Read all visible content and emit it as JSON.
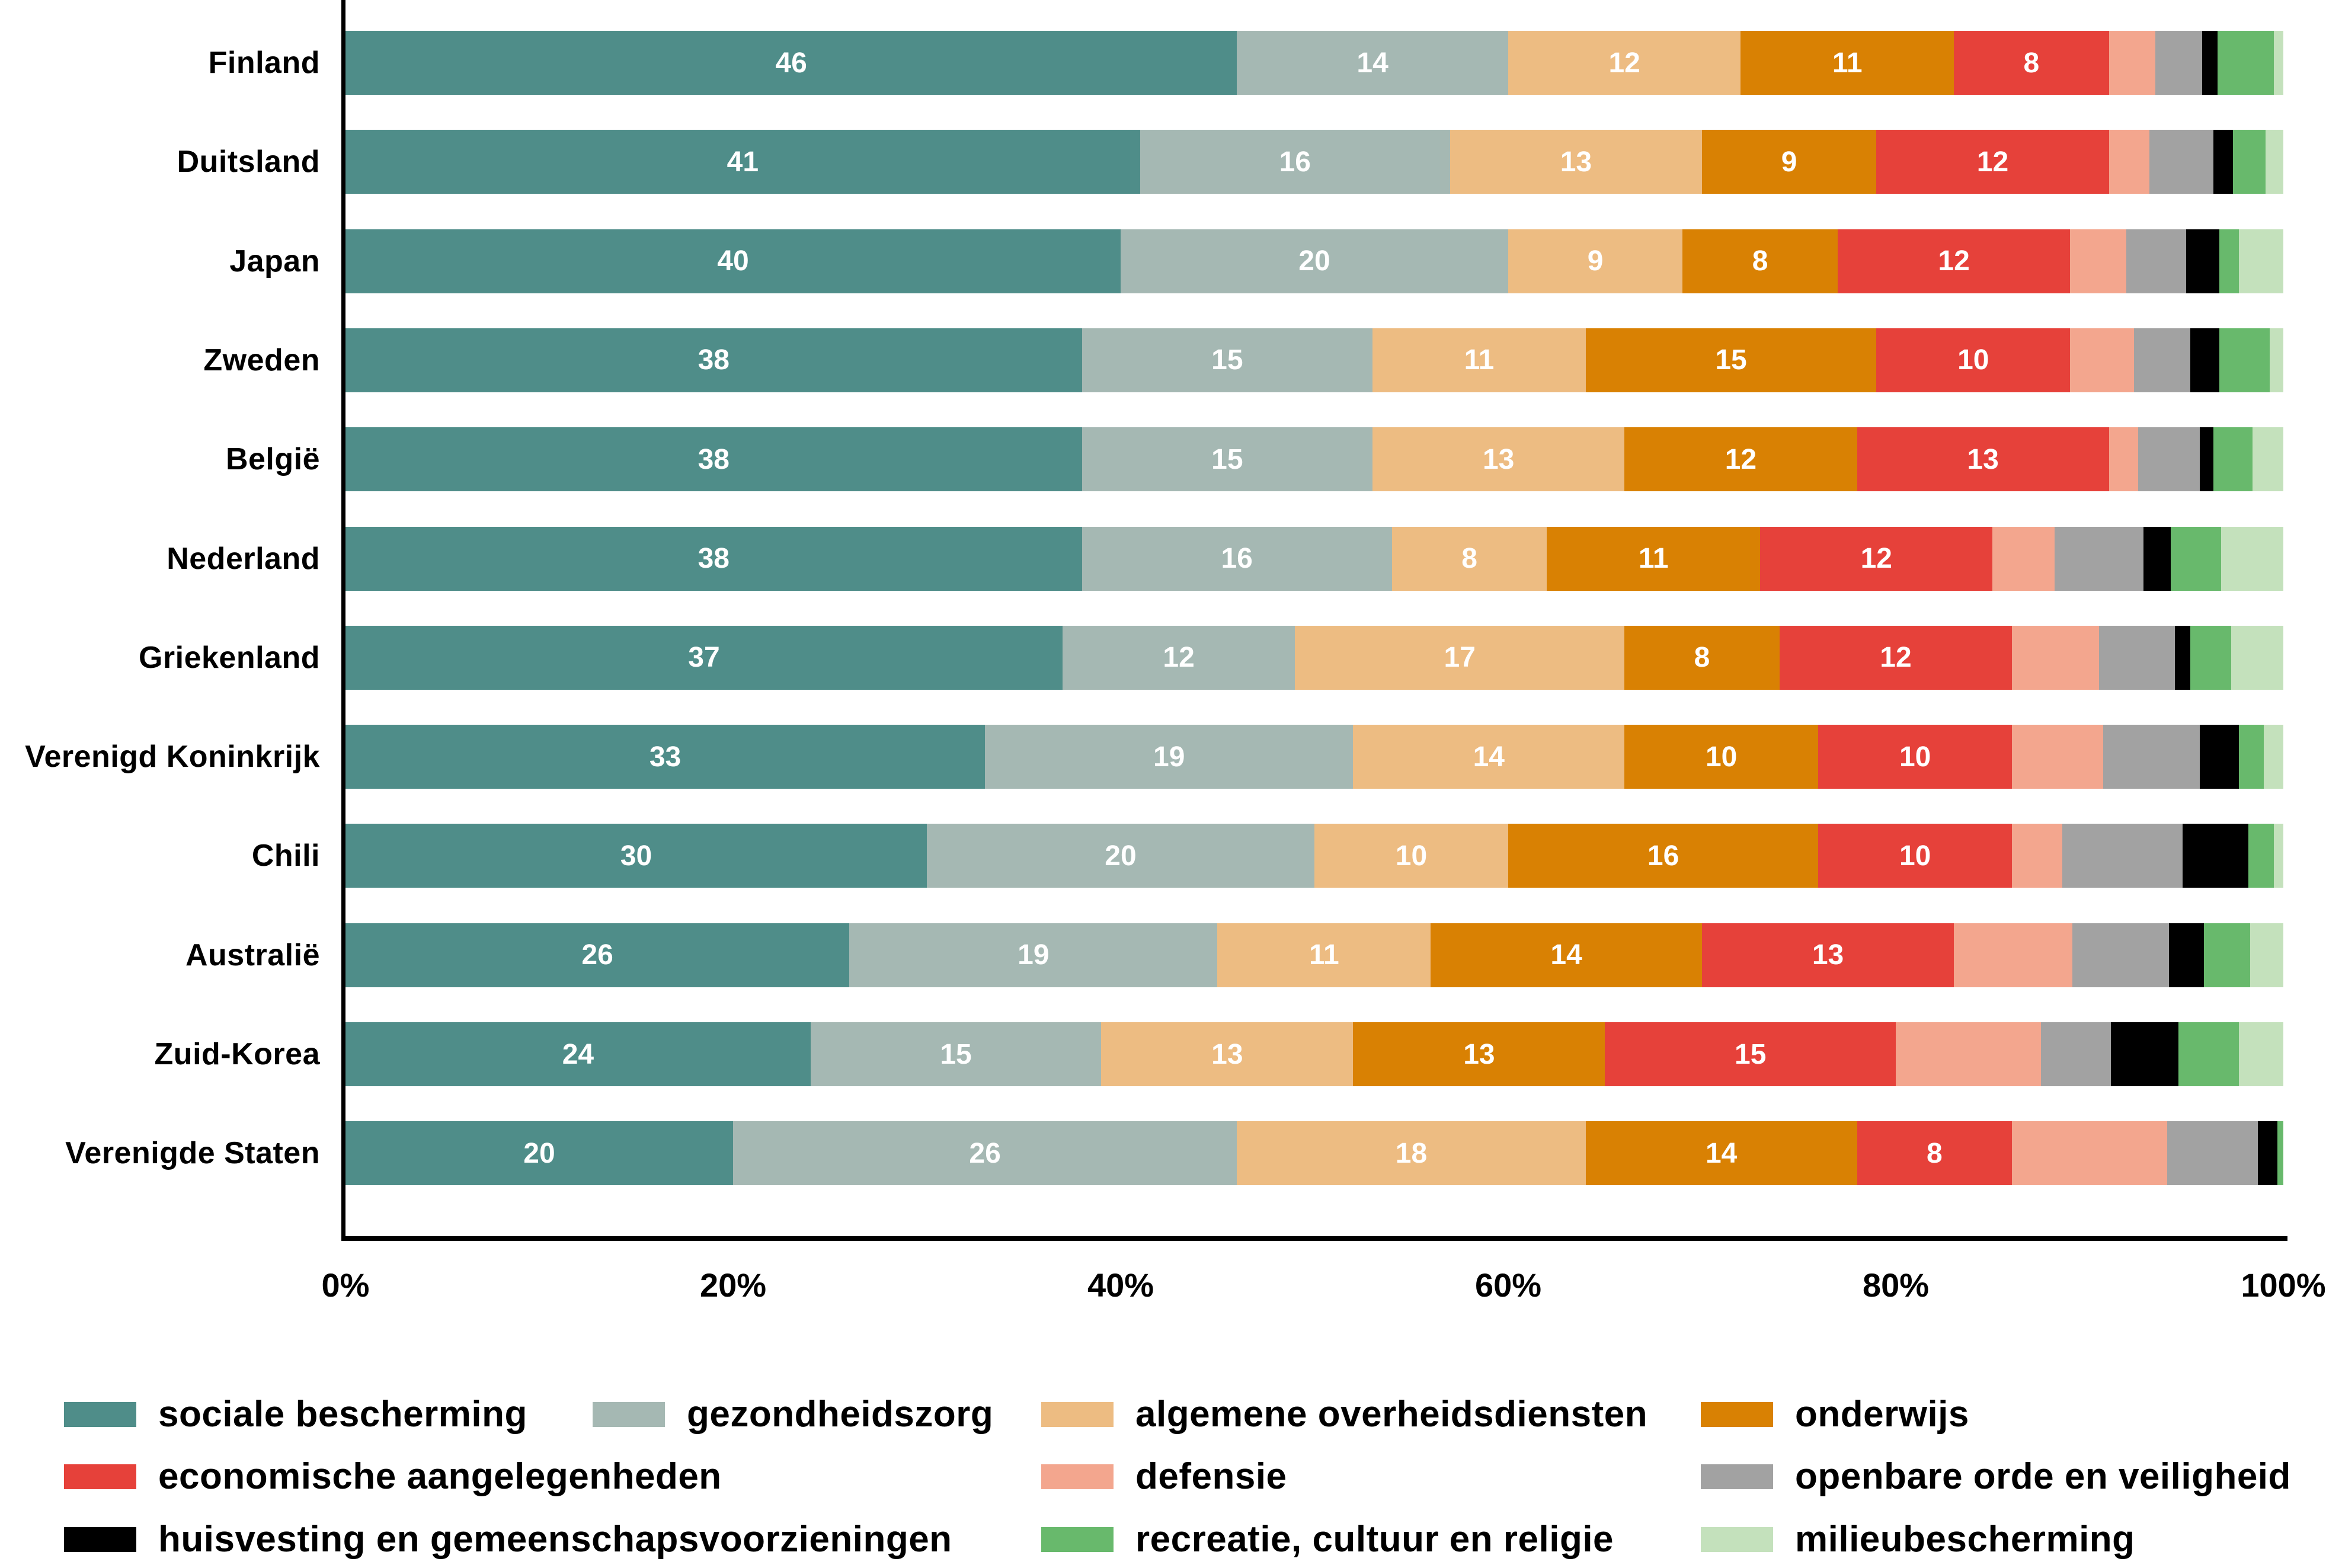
{
  "chart_data": {
    "type": "bar",
    "orientation": "horizontal",
    "stacked": true,
    "unit": "%",
    "title": "",
    "xlabel": "",
    "ylabel": "",
    "xlim": [
      0,
      100
    ],
    "grid": false,
    "legend_position": "bottom",
    "value_label_min": 8,
    "categories": [
      "Finland",
      "Duitsland",
      "Japan",
      "Zweden",
      "België",
      "Nederland",
      "Griekenland",
      "Verenigd Koninkrijk",
      "Chili",
      "Australië",
      "Zuid-Korea",
      "Verenigde Staten"
    ],
    "x_ticks": [
      {
        "value": 0,
        "label": "0%"
      },
      {
        "value": 20,
        "label": "20%"
      },
      {
        "value": 40,
        "label": "40%"
      },
      {
        "value": 60,
        "label": "60%"
      },
      {
        "value": 80,
        "label": "80%"
      },
      {
        "value": 100,
        "label": "100%"
      }
    ],
    "series": [
      {
        "name": "sociale bescherming",
        "color": "#4f8d89",
        "show_value_labels": true,
        "values": [
          46,
          41,
          40,
          38,
          38,
          38,
          37,
          33,
          30,
          26,
          24,
          20
        ]
      },
      {
        "name": "gezondheidszorg",
        "color": "#a5b8b3",
        "show_value_labels": true,
        "values": [
          14,
          16,
          20,
          15,
          15,
          16,
          12,
          19,
          20,
          19,
          15,
          26
        ]
      },
      {
        "name": "algemene overheidsdiensten",
        "color": "#edbc82",
        "show_value_labels": true,
        "values": [
          12,
          13,
          9,
          11,
          13,
          8,
          17,
          14,
          10,
          11,
          13,
          18
        ]
      },
      {
        "name": "onderwijs",
        "color": "#d98103",
        "show_value_labels": true,
        "values": [
          11,
          9,
          8,
          15,
          12,
          11,
          8,
          10,
          16,
          14,
          13,
          14
        ]
      },
      {
        "name": "economische aangelegenheden",
        "color": "#e6413a",
        "show_value_labels": true,
        "values": [
          8,
          12,
          12,
          10,
          13,
          12,
          12,
          10,
          10,
          13,
          15,
          8
        ]
      },
      {
        "name": "defensie",
        "color": "#f3a68e",
        "show_value_labels": false,
        "values": [
          2.4,
          2.1,
          2.9,
          3.3,
          1.5,
          3.2,
          4.5,
          4.7,
          2.6,
          6.1,
          7.5,
          8
        ]
      },
      {
        "name": "openbare orde en veiligheid",
        "color": "#a2a2a2",
        "show_value_labels": false,
        "values": [
          2.4,
          3.3,
          3.1,
          2.9,
          3.2,
          4.6,
          3.9,
          5,
          6.2,
          5,
          3.6,
          4.7
        ]
      },
      {
        "name": "huisvesting en gemeenschapsvoorzieningen",
        "color": "#000000",
        "show_value_labels": false,
        "values": [
          0.8,
          1,
          1.7,
          1.5,
          0.7,
          1.4,
          0.8,
          2,
          3.4,
          1.8,
          3.5,
          1
        ]
      },
      {
        "name": "recreatie, cultuur en religie",
        "color": "#68b96c",
        "show_value_labels": false,
        "values": [
          2.9,
          1.7,
          1,
          2.6,
          2,
          2.6,
          2.1,
          1.3,
          1.3,
          2.4,
          3.1,
          0.3
        ]
      },
      {
        "name": "milieubescherming",
        "color": "#c4e1bc",
        "show_value_labels": false,
        "values": [
          0.5,
          0.9,
          2.3,
          0.7,
          1.6,
          3.2,
          2.7,
          1,
          0.5,
          1.7,
          2.3,
          0
        ]
      }
    ],
    "legend_rows": [
      [
        "sociale bescherming",
        "gezondheidszorg",
        "algemene overheidsdiensten",
        "onderwijs"
      ],
      [
        "economische aangelegenheden",
        "defensie",
        "openbare orde en veiligheid"
      ],
      [
        "huisvesting en gemeenschapsvoorzieningen",
        "recreatie, cultuur en religie",
        "milieubescherming"
      ]
    ]
  }
}
